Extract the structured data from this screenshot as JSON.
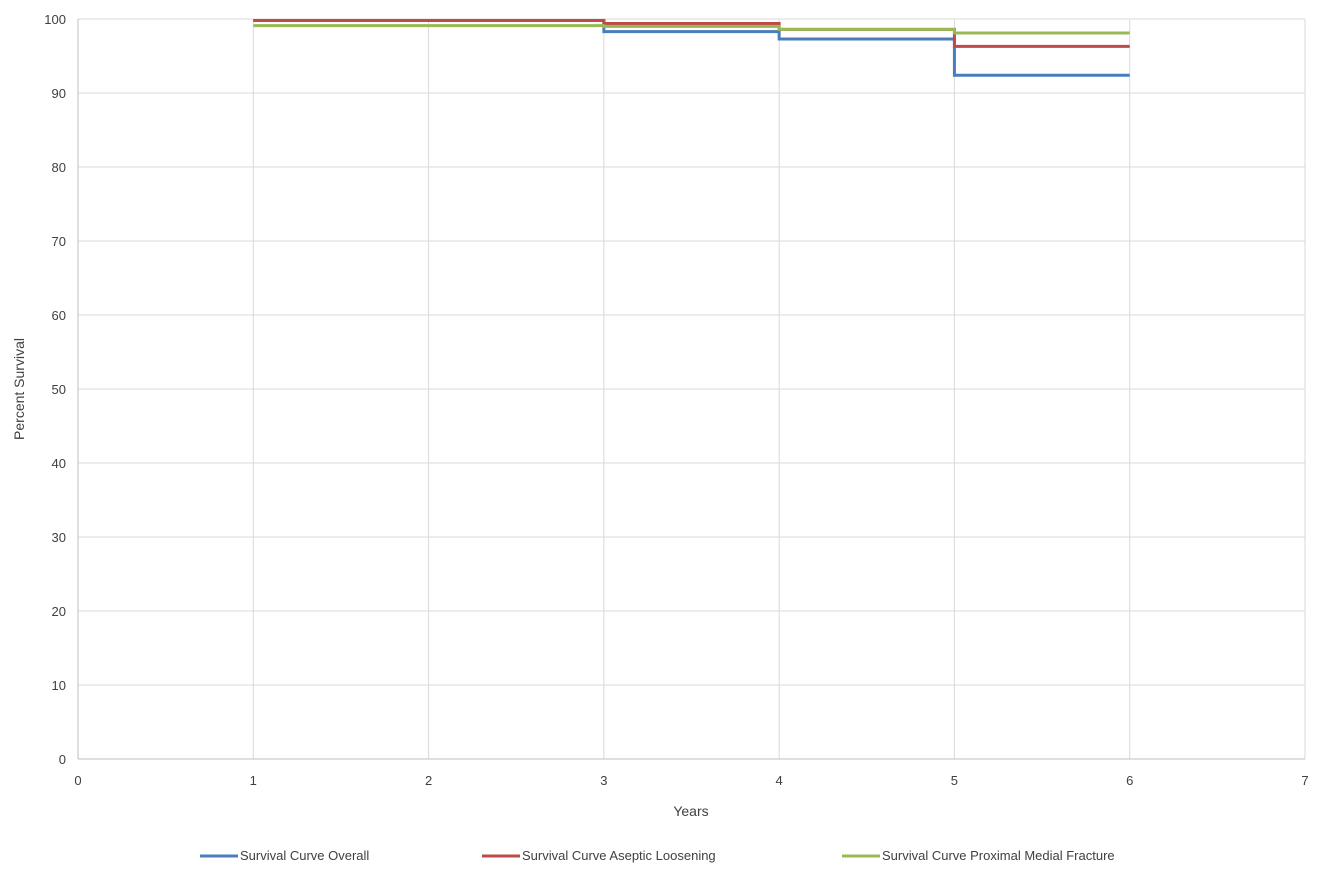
{
  "chart_data": {
    "type": "line",
    "step": true,
    "title": "",
    "xlabel": "Years",
    "ylabel": "Percent Survival",
    "xlim": [
      0,
      7
    ],
    "ylim": [
      0,
      100
    ],
    "x_ticks": [
      0,
      1,
      2,
      3,
      4,
      5,
      6,
      7
    ],
    "y_ticks": [
      0,
      10,
      20,
      30,
      40,
      50,
      60,
      70,
      80,
      90,
      100
    ],
    "grid": true,
    "legend_position": "bottom",
    "series": [
      {
        "name": "Survival Curve Overall",
        "color": "#4a7ebb",
        "x": [
          1,
          3,
          4,
          5,
          6
        ],
        "y": [
          99.8,
          98.3,
          97.3,
          92.4,
          92.4
        ]
      },
      {
        "name": "Survival Curve Aseptic Loosening",
        "color": "#be4b48",
        "x": [
          1,
          3,
          4,
          5,
          6
        ],
        "y": [
          99.8,
          99.4,
          98.6,
          96.3,
          96.3
        ]
      },
      {
        "name": "Survival Curve Proximal Medial Fracture",
        "color": "#98b954",
        "x": [
          1,
          3,
          4,
          5,
          6
        ],
        "y": [
          99.1,
          99.0,
          98.6,
          98.1,
          98.1
        ]
      }
    ]
  }
}
